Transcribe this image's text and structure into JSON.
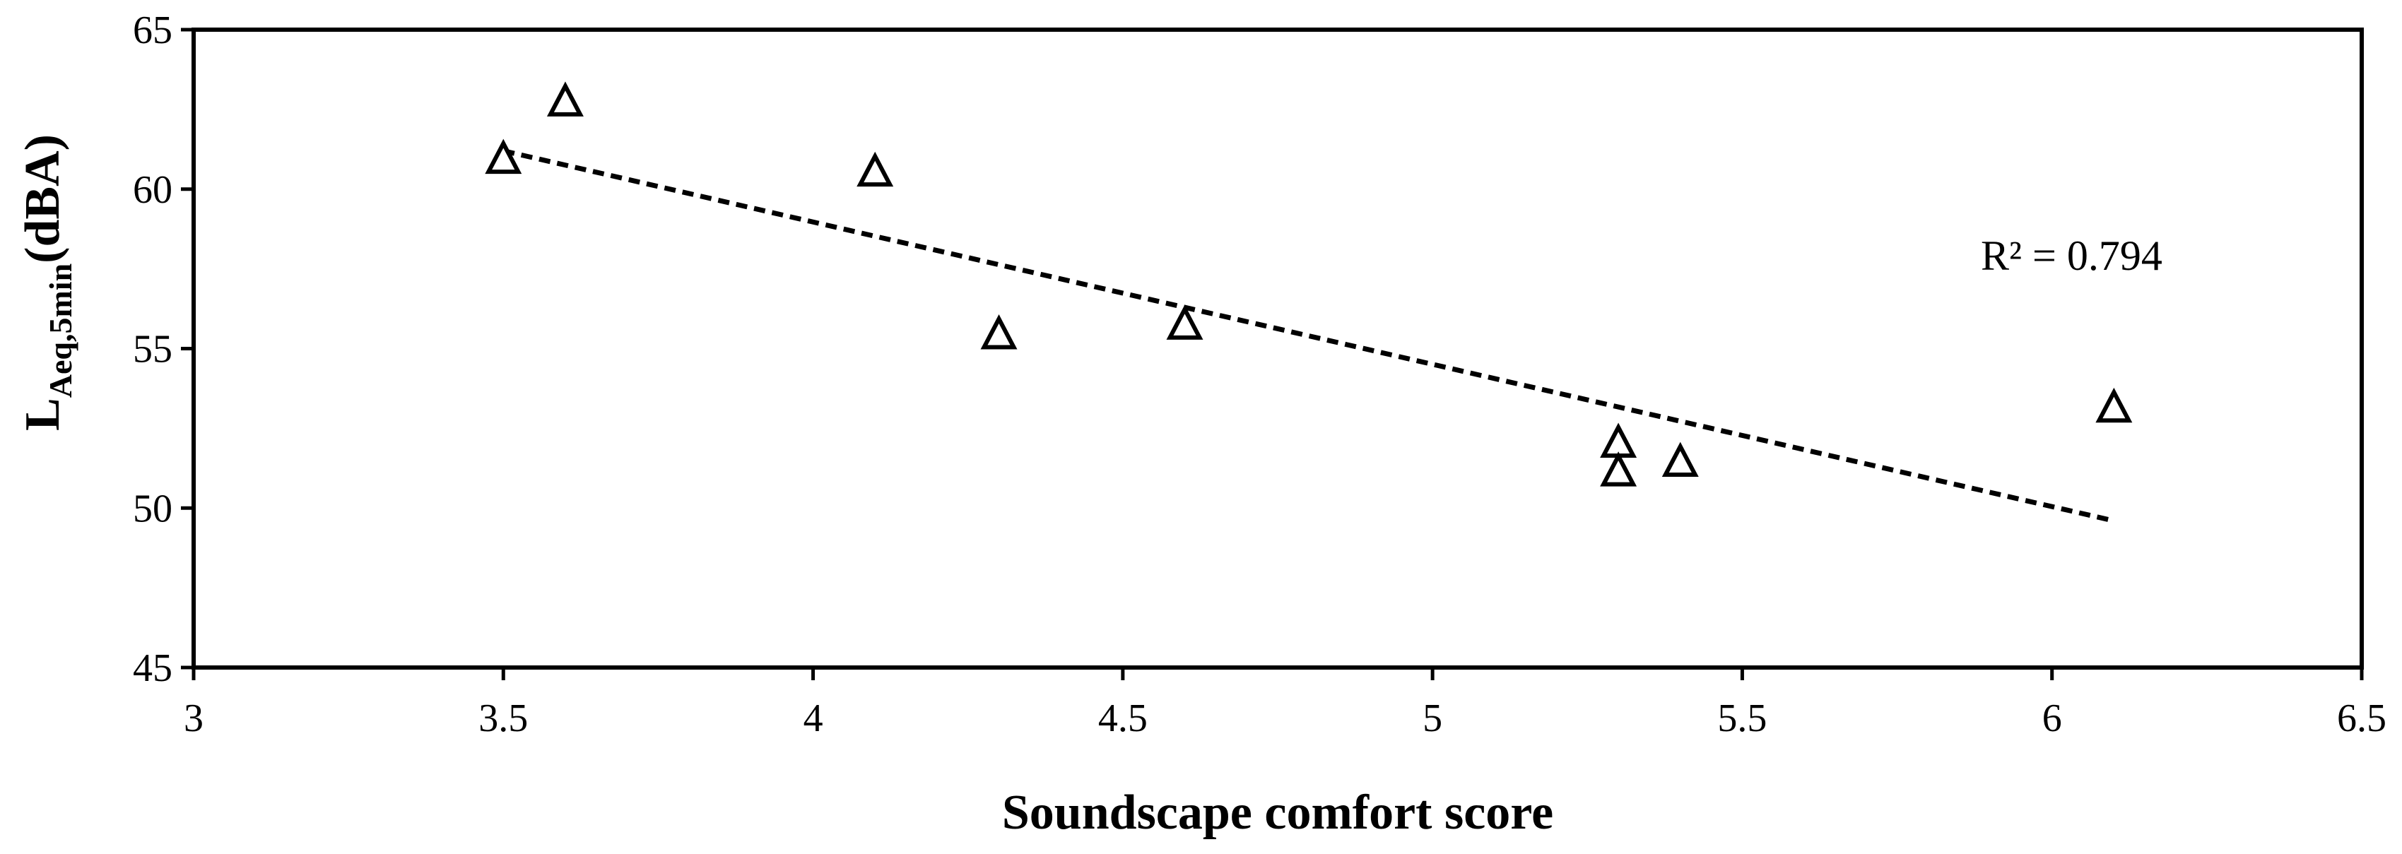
{
  "chart_data": {
    "type": "scatter",
    "title": "",
    "xlabel": "Soundscape comfort score",
    "ylabel": {
      "main": "L",
      "subscript": "Aeq,5min",
      "suffix": "(dBA)"
    },
    "xlim": [
      3,
      6.5
    ],
    "ylim": [
      45,
      65
    ],
    "xticks": [
      "3",
      "3.5",
      "4",
      "4.5",
      "5",
      "5.5",
      "6",
      "6.5"
    ],
    "yticks": [
      "45",
      "50",
      "55",
      "60",
      "65"
    ],
    "grid": false,
    "legend": "none",
    "marker": "open-triangle",
    "points": [
      {
        "x": 3.5,
        "y": 60.9
      },
      {
        "x": 3.6,
        "y": 62.7
      },
      {
        "x": 4.1,
        "y": 60.5
      },
      {
        "x": 4.3,
        "y": 55.4
      },
      {
        "x": 4.6,
        "y": 55.7
      },
      {
        "x": 5.3,
        "y": 52.0
      },
      {
        "x": 5.3,
        "y": 51.1
      },
      {
        "x": 5.4,
        "y": 51.4
      },
      {
        "x": 6.1,
        "y": 53.1
      }
    ],
    "trendline": {
      "style": "dashed",
      "x": [
        3.5,
        6.1
      ],
      "y": [
        61.2,
        49.6
      ]
    },
    "annotation": "R² = 0.794"
  }
}
